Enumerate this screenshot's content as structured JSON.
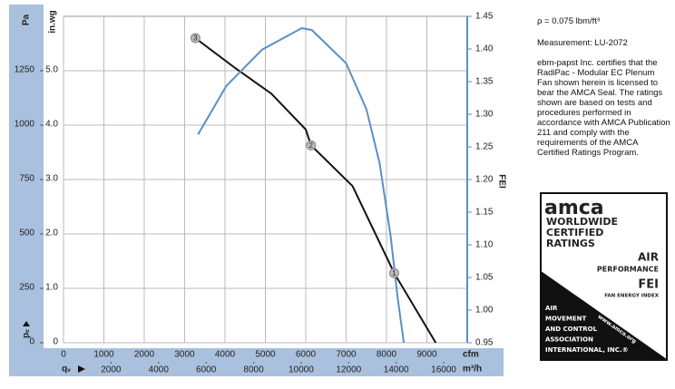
{
  "chart_data": {
    "type": "line",
    "x_axis_label": "cfm",
    "x2_axis_label": "m³/h",
    "flow_symbol": "qᵥ",
    "y_axis_label": "in.wg",
    "y3_axis_label": "Pa",
    "pressure_symbol": "pₑ",
    "y2_axis_label": "FEI",
    "xlim": [
      0,
      10000
    ],
    "xticks": [
      0,
      1000,
      2000,
      3000,
      4000,
      5000,
      6000,
      7000,
      8000,
      9000
    ],
    "x2lim": [
      0,
      16990
    ],
    "x2ticks": [
      2000,
      4000,
      6000,
      8000,
      10000,
      12000,
      14000,
      16000
    ],
    "ylim": [
      0,
      6
    ],
    "yticks": [
      0,
      {
        "value": 1,
        "label": "1.0"
      },
      {
        "value": 2,
        "label": "2.0"
      },
      {
        "value": 3,
        "label": "3.0"
      },
      {
        "value": 4,
        "label": "4.0"
      },
      {
        "value": 5,
        "label": "5.0"
      }
    ],
    "y3lim": [
      0,
      1500
    ],
    "y3ticks": [
      0,
      250,
      500,
      750,
      1000,
      1250
    ],
    "y2lim": [
      0.95,
      1.45
    ],
    "y2ticks": [
      0.95,
      {
        "value": 1,
        "label": "1.00"
      },
      1.05,
      {
        "value": 1.1,
        "label": "1.10"
      },
      1.15,
      {
        "value": 1.2,
        "label": "1.20"
      },
      1.25,
      {
        "value": 1.3,
        "label": "1.30"
      },
      1.35,
      {
        "value": 1.4,
        "label": "1.40"
      },
      1.45
    ],
    "grid": true,
    "series": [
      {
        "color": "#111111",
        "x": [
          3266,
          4250,
          5145,
          6000,
          6130,
          7160,
          8190,
          9220
        ],
        "values": [
          5.6,
          5.05,
          4.58,
          3.92,
          3.63,
          2.88,
          1.28,
          0
        ]
      },
      {
        "color": "#5b8fc5",
        "axis": "y2",
        "x": [
          3333,
          4030,
          4920,
          5900,
          6150,
          7000,
          7500,
          7830,
          8100,
          8280,
          8430
        ],
        "values": [
          1.269,
          1.343,
          1.399,
          1.432,
          1.429,
          1.378,
          1.308,
          1.225,
          1.114,
          1.017,
          0.95
        ]
      }
    ],
    "points": [
      {
        "label": "3",
        "x": 3266,
        "y": 5.6
      },
      {
        "label": "2",
        "x": 6130,
        "y": 3.63
      },
      {
        "label": "1",
        "x": 8190,
        "y": 1.28
      }
    ]
  },
  "side_text": {
    "density": "ρ = 0.075 lbm/ft³",
    "measurement": "Measurement: LU-2072",
    "statement": "ebm-papst Inc. certifies that the RadiPac - Modular EC Plenum Fan shown herein is licensed to bear the AMCA Seal. The ratings shown are based on tests and procedures performed in accordance with AMCA Publication 211 and comply with the requirements of the AMCA Certified Ratings Program."
  },
  "logo": {
    "brand": "amca",
    "line1": "WORLDWIDE",
    "line2": "CERTIFIED",
    "line3": "RATINGS",
    "air": "AIR",
    "performance": "PERFORMANCE",
    "fei": "FEI",
    "fei_full": "FAN ENERGY INDEX",
    "org": [
      "AIR",
      "MOVEMENT",
      "AND CONTROL",
      "ASSOCIATION",
      "INTERNATIONAL, INC.®"
    ],
    "url": "www.amca.org"
  }
}
